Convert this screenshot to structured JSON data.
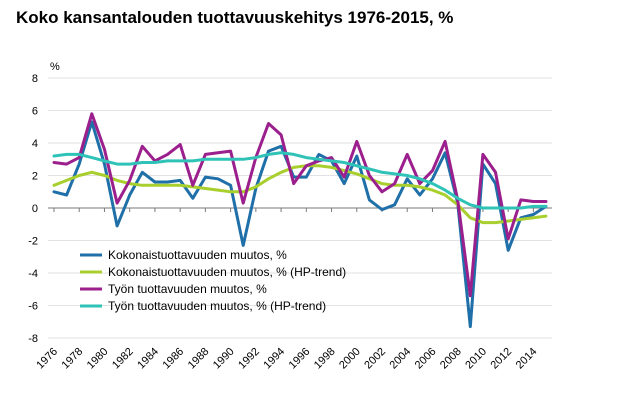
{
  "chart_data": {
    "type": "line",
    "title": "Koko kansantalouden tuottavuuskehitys 1976-2015, %",
    "ylabel": "%",
    "xlabel": "",
    "ylim": [
      -8,
      8
    ],
    "yticks": [
      8,
      6,
      4,
      2,
      0,
      -2,
      -4,
      -6,
      -8
    ],
    "x": [
      1976,
      1977,
      1978,
      1979,
      1980,
      1981,
      1982,
      1983,
      1984,
      1985,
      1986,
      1987,
      1988,
      1989,
      1990,
      1991,
      1992,
      1993,
      1994,
      1995,
      1996,
      1997,
      1998,
      1999,
      2000,
      2001,
      2002,
      2003,
      2004,
      2005,
      2006,
      2007,
      2008,
      2009,
      2010,
      2011,
      2012,
      2013,
      2014,
      2015
    ],
    "xticks": [
      "1976",
      "1978",
      "1980",
      "1982",
      "1984",
      "1986",
      "1988",
      "1990",
      "1992",
      "1994",
      "1996",
      "1998",
      "2000",
      "2002",
      "2004",
      "2006",
      "2008",
      "2010",
      "2012",
      "2014"
    ],
    "grid": "horizontal",
    "legend_position": "lower-left",
    "series": [
      {
        "name": "Kokonaistuottavuuden muutos, %",
        "color": "#1f6fa8",
        "values": [
          1.0,
          0.8,
          2.7,
          5.3,
          2.7,
          -1.1,
          0.8,
          2.2,
          1.6,
          1.6,
          1.7,
          0.6,
          1.9,
          1.8,
          1.4,
          -2.3,
          1.2,
          3.5,
          3.8,
          1.9,
          1.9,
          3.3,
          2.9,
          1.5,
          3.2,
          0.5,
          -0.1,
          0.2,
          1.8,
          0.8,
          1.8,
          3.4,
          0.3,
          -7.3,
          2.7,
          1.5,
          -2.6,
          -0.6,
          -0.4,
          0.1
        ]
      },
      {
        "name": "Kokonaistuottavuuden muutos, % (HP-trend)",
        "color": "#a8cf2d",
        "values": [
          1.4,
          1.7,
          2.0,
          2.2,
          2.0,
          1.7,
          1.5,
          1.4,
          1.4,
          1.4,
          1.4,
          1.3,
          1.2,
          1.1,
          1.0,
          1.0,
          1.3,
          1.8,
          2.2,
          2.5,
          2.6,
          2.6,
          2.5,
          2.3,
          2.1,
          1.8,
          1.5,
          1.4,
          1.4,
          1.3,
          1.1,
          0.8,
          0.2,
          -0.6,
          -0.9,
          -0.9,
          -0.8,
          -0.7,
          -0.6,
          -0.5
        ]
      },
      {
        "name": "Työn tuottavuuden muutos, %",
        "color": "#9b1f8c",
        "values": [
          2.8,
          2.7,
          3.1,
          5.8,
          3.6,
          0.3,
          1.7,
          3.8,
          2.9,
          3.3,
          3.9,
          1.4,
          3.3,
          3.4,
          3.5,
          0.3,
          3.1,
          5.2,
          4.5,
          1.5,
          2.6,
          2.9,
          3.1,
          1.9,
          4.1,
          2.0,
          1.0,
          1.5,
          3.3,
          1.5,
          2.3,
          4.1,
          0.5,
          -5.4,
          3.3,
          2.2,
          -1.9,
          0.5,
          0.4,
          0.4
        ]
      },
      {
        "name": "Työn tuottavuuden muutos, % (HP-trend)",
        "color": "#2fc3b8",
        "values": [
          3.2,
          3.3,
          3.3,
          3.1,
          2.9,
          2.7,
          2.7,
          2.8,
          2.8,
          2.9,
          2.9,
          2.9,
          3.0,
          3.0,
          3.0,
          3.0,
          3.1,
          3.3,
          3.4,
          3.3,
          3.1,
          3.0,
          2.9,
          2.8,
          2.6,
          2.4,
          2.2,
          2.1,
          2.0,
          1.8,
          1.5,
          1.1,
          0.6,
          0.2,
          0.0,
          0.0,
          0.0,
          0.0,
          0.1,
          0.1
        ]
      }
    ]
  }
}
